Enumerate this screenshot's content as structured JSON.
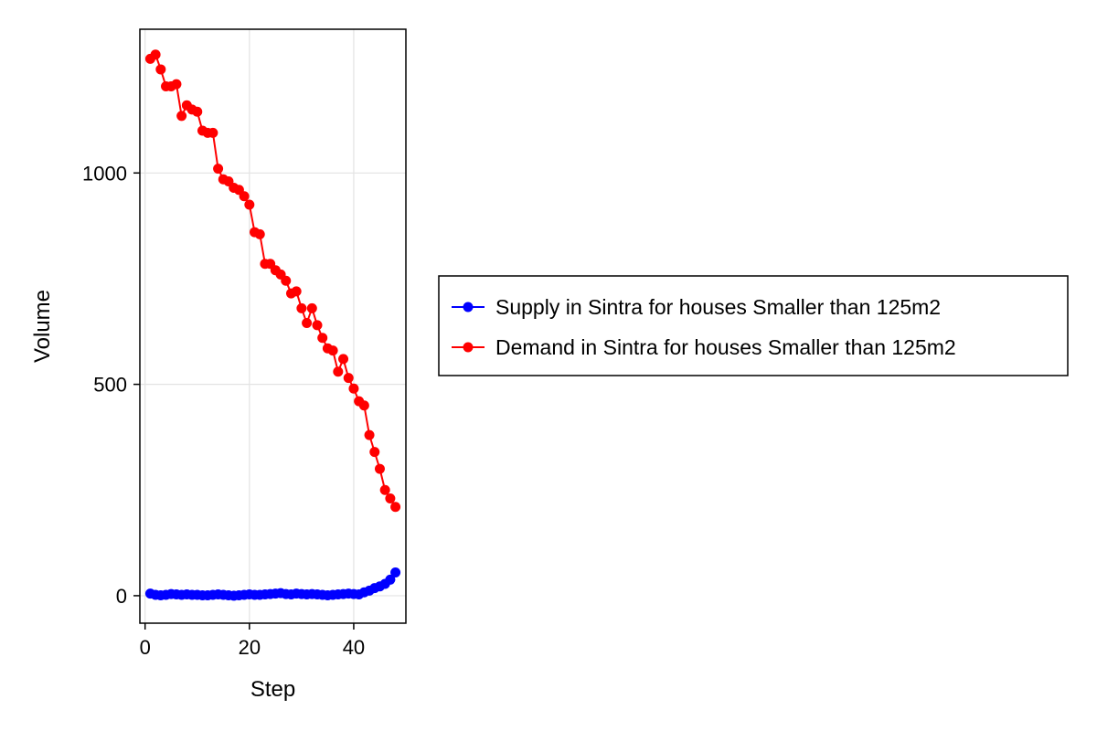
{
  "chart_data": {
    "type": "line",
    "xlabel": "Step",
    "ylabel": "Volume",
    "xlim": [
      -1,
      50
    ],
    "ylim": [
      -65,
      1340
    ],
    "xticks": [
      0,
      20,
      40
    ],
    "yticks": [
      0,
      500,
      1000
    ],
    "xtick_labels": [
      "0",
      "20",
      "40"
    ],
    "ytick_labels": [
      "0",
      "500",
      "1000"
    ],
    "grid": true,
    "legend_position": "right",
    "series": [
      {
        "name": "Supply in Sintra for houses Smaller than 125m2",
        "color": "#0000ff",
        "x": [
          1,
          2,
          3,
          4,
          5,
          6,
          7,
          8,
          9,
          10,
          11,
          12,
          13,
          14,
          15,
          16,
          17,
          18,
          19,
          20,
          21,
          22,
          23,
          24,
          25,
          26,
          27,
          28,
          29,
          30,
          31,
          32,
          33,
          34,
          35,
          36,
          37,
          38,
          39,
          40,
          41,
          42,
          43,
          44,
          45,
          46,
          47,
          48
        ],
        "y": [
          5,
          2,
          1,
          2,
          4,
          3,
          2,
          3,
          2,
          2,
          1,
          1,
          2,
          3,
          2,
          1,
          0,
          1,
          2,
          3,
          2,
          2,
          3,
          4,
          5,
          6,
          4,
          3,
          5,
          4,
          3,
          4,
          3,
          2,
          1,
          2,
          3,
          4,
          5,
          4,
          3,
          8,
          12,
          18,
          22,
          28,
          38,
          55
        ]
      },
      {
        "name": "Demand in Sintra for houses Smaller than 125m2",
        "color": "#ff0000",
        "x": [
          1,
          2,
          3,
          4,
          5,
          6,
          7,
          8,
          9,
          10,
          11,
          12,
          13,
          14,
          15,
          16,
          17,
          18,
          19,
          20,
          21,
          22,
          23,
          24,
          25,
          26,
          27,
          28,
          29,
          30,
          31,
          32,
          33,
          34,
          35,
          36,
          37,
          38,
          39,
          40,
          41,
          42,
          43,
          44,
          45,
          46,
          47,
          48
        ],
        "y": [
          1270,
          1280,
          1245,
          1205,
          1205,
          1210,
          1135,
          1160,
          1150,
          1145,
          1100,
          1095,
          1095,
          1010,
          985,
          980,
          965,
          960,
          945,
          925,
          860,
          855,
          785,
          785,
          770,
          760,
          745,
          715,
          720,
          680,
          645,
          680,
          640,
          610,
          585,
          580,
          530,
          560,
          515,
          490,
          460,
          450,
          380,
          340,
          300,
          250,
          230,
          210
        ]
      }
    ]
  }
}
